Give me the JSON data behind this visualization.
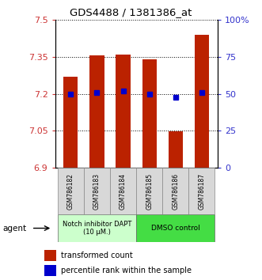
{
  "title": "GDS4488 / 1381386_at",
  "samples": [
    "GSM786182",
    "GSM786183",
    "GSM786184",
    "GSM786185",
    "GSM786186",
    "GSM786187"
  ],
  "bar_tops": [
    7.27,
    7.355,
    7.36,
    7.34,
    7.047,
    7.44
  ],
  "bar_bottom": 6.9,
  "percentile_values": [
    7.2,
    7.205,
    7.21,
    7.2,
    7.185,
    7.205
  ],
  "ylim": [
    6.9,
    7.5
  ],
  "yticks_left": [
    6.9,
    7.05,
    7.2,
    7.35,
    7.5
  ],
  "yticks_right_labels": [
    "0",
    "25",
    "50",
    "75",
    "100%"
  ],
  "bar_color": "#bb2200",
  "dot_color": "#0000cc",
  "group1_label": "Notch inhibitor DAPT\n(10 μM.)",
  "group2_label": "DMSO control",
  "group1_color": "#ccffcc",
  "group2_color": "#44dd44",
  "legend_bar_label": "transformed count",
  "legend_dot_label": "percentile rank within the sample",
  "agent_label": "agent",
  "left_color": "#cc3333",
  "right_color": "#3333cc"
}
